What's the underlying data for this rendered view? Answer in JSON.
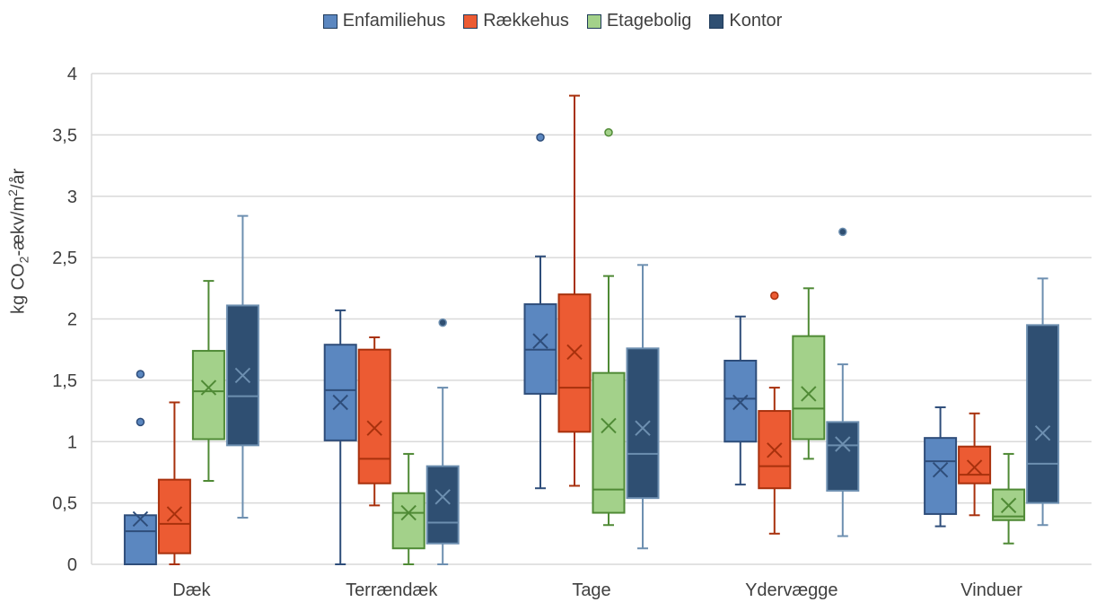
{
  "chart_data": {
    "type": "boxplot",
    "title": "",
    "ylabel": "kg CO2-ækv/m2/år",
    "ylabel_parts": {
      "pre": "kg CO",
      "sub": "2",
      "mid": "-ækv/m",
      "sup": "2",
      "post": "/år"
    },
    "ylim": [
      0,
      4
    ],
    "yticks": [
      0,
      0.5,
      1,
      1.5,
      2,
      2.5,
      3,
      3.5,
      4
    ],
    "ytick_labels": [
      "0",
      "0,5",
      "1",
      "1,5",
      "2",
      "2,5",
      "3",
      "3,5",
      "4"
    ],
    "grid": true,
    "legend_position": "top",
    "categories": [
      "Dæk",
      "Terrændæk",
      "Tage",
      "Ydervægge",
      "Vinduer"
    ],
    "series": [
      {
        "name": "Enfamiliehus",
        "fill": "#5b87c0",
        "stroke": "#2e4d7a",
        "boxes": [
          {
            "min": 0,
            "q1": 0,
            "median": 0.27,
            "q3": 0.4,
            "max": 0.4,
            "mean": 0.37,
            "outliers": [
              1.16,
              1.55
            ]
          },
          {
            "min": 0,
            "q1": 1.01,
            "median": 1.42,
            "q3": 1.79,
            "max": 2.07,
            "mean": 1.32,
            "outliers": []
          },
          {
            "min": 0.62,
            "q1": 1.39,
            "median": 1.75,
            "q3": 2.12,
            "max": 2.51,
            "mean": 1.82,
            "outliers": [
              3.48
            ]
          },
          {
            "min": 0.65,
            "q1": 1.0,
            "median": 1.35,
            "q3": 1.66,
            "max": 2.02,
            "mean": 1.32,
            "outliers": []
          },
          {
            "min": 0.31,
            "q1": 0.41,
            "median": 0.84,
            "q3": 1.03,
            "max": 1.28,
            "mean": 0.77,
            "outliers": []
          }
        ]
      },
      {
        "name": "Rækkehus",
        "fill": "#ec5b33",
        "stroke": "#a8310d",
        "boxes": [
          {
            "min": 0,
            "q1": 0.09,
            "median": 0.33,
            "q3": 0.69,
            "max": 1.32,
            "mean": 0.41,
            "outliers": []
          },
          {
            "min": 0.48,
            "q1": 0.66,
            "median": 0.86,
            "q3": 1.75,
            "max": 1.85,
            "mean": 1.11,
            "outliers": []
          },
          {
            "min": 0.64,
            "q1": 1.08,
            "median": 1.44,
            "q3": 2.2,
            "max": 3.82,
            "mean": 1.73,
            "outliers": []
          },
          {
            "min": 0.25,
            "q1": 0.62,
            "median": 0.8,
            "q3": 1.25,
            "max": 1.44,
            "mean": 0.93,
            "outliers": [
              2.19
            ]
          },
          {
            "min": 0.4,
            "q1": 0.66,
            "median": 0.73,
            "q3": 0.96,
            "max": 1.23,
            "mean": 0.79,
            "outliers": []
          }
        ]
      },
      {
        "name": "Etagebolig",
        "fill": "#a3d18a",
        "stroke": "#4f8a35",
        "boxes": [
          {
            "min": 0.68,
            "q1": 1.02,
            "median": 1.41,
            "q3": 1.74,
            "max": 2.31,
            "mean": 1.44,
            "outliers": []
          },
          {
            "min": 0,
            "q1": 0.13,
            "median": 0.42,
            "q3": 0.58,
            "max": 0.9,
            "mean": 0.42,
            "outliers": []
          },
          {
            "min": 0.32,
            "q1": 0.42,
            "median": 0.61,
            "q3": 1.56,
            "max": 2.35,
            "mean": 1.13,
            "outliers": [
              3.52
            ]
          },
          {
            "min": 0.86,
            "q1": 1.02,
            "median": 1.27,
            "q3": 1.86,
            "max": 2.25,
            "mean": 1.39,
            "outliers": []
          },
          {
            "min": 0.17,
            "q1": 0.36,
            "median": 0.39,
            "q3": 0.61,
            "max": 0.9,
            "mean": 0.48,
            "outliers": []
          }
        ]
      },
      {
        "name": "Kontor",
        "fill": "#2f4f72",
        "stroke": "#6d8fb0",
        "boxes": [
          {
            "min": 0.38,
            "q1": 0.97,
            "median": 1.37,
            "q3": 2.11,
            "max": 2.84,
            "mean": 1.54,
            "outliers": []
          },
          {
            "min": 0,
            "q1": 0.17,
            "median": 0.34,
            "q3": 0.8,
            "max": 1.44,
            "mean": 0.55,
            "outliers": [
              1.97
            ]
          },
          {
            "min": 0.13,
            "q1": 0.54,
            "median": 0.9,
            "q3": 1.76,
            "max": 2.44,
            "mean": 1.11,
            "outliers": []
          },
          {
            "min": 0.23,
            "q1": 0.6,
            "median": 0.97,
            "q3": 1.16,
            "max": 1.63,
            "mean": 0.98,
            "outliers": [
              2.71
            ]
          },
          {
            "min": 0.32,
            "q1": 0.5,
            "median": 0.82,
            "q3": 1.95,
            "max": 2.33,
            "mean": 1.07,
            "outliers": []
          }
        ]
      }
    ]
  }
}
